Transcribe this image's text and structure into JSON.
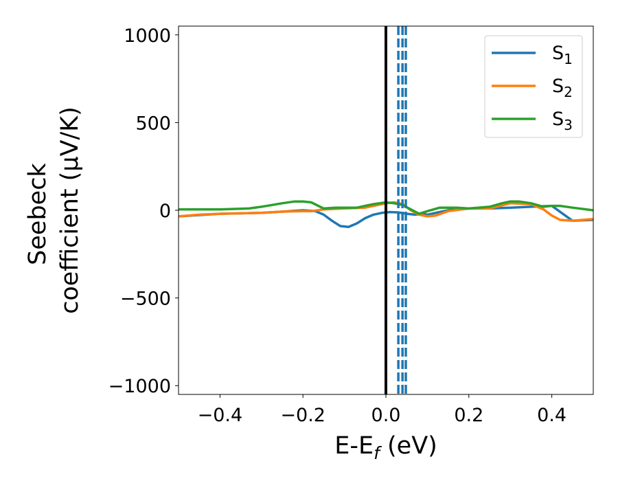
{
  "chart_data": {
    "type": "line",
    "xlabel_main": "E-E",
    "xlabel_sub": "f",
    "xlabel_unit": " (eV)",
    "ylabel_line1": "Seebeck",
    "ylabel_line2": "coefficient  (μV/K)",
    "xlim": [
      -0.5,
      0.5
    ],
    "ylim": [
      -1050,
      1050
    ],
    "x_ticks": [
      -0.4,
      -0.2,
      0.0,
      0.2,
      0.4
    ],
    "x_tick_labels": [
      "−0.4",
      "−0.2",
      "0.0",
      "0.2",
      "0.4"
    ],
    "y_ticks": [
      1000,
      500,
      0,
      -500,
      -1000
    ],
    "y_tick_labels": [
      "1000",
      "500",
      "0",
      "−500",
      "−1000"
    ],
    "legend_position": "top-right",
    "series": [
      {
        "name": "S",
        "sub": "1",
        "color": "#1f77b4",
        "x": [
          -0.5,
          -0.4,
          -0.3,
          -0.25,
          -0.2,
          -0.17,
          -0.15,
          -0.13,
          -0.11,
          -0.09,
          -0.07,
          -0.05,
          -0.03,
          -0.01,
          0.01,
          0.03,
          0.05,
          0.07,
          0.09,
          0.1,
          0.12,
          0.15,
          0.2,
          0.25,
          0.3,
          0.35,
          0.4,
          0.45,
          0.5
        ],
        "y": [
          -35,
          -20,
          -15,
          -8,
          0,
          -5,
          -25,
          -60,
          -90,
          -95,
          -75,
          -45,
          -25,
          -15,
          -10,
          -12,
          -20,
          -25,
          -20,
          -25,
          -15,
          0,
          10,
          10,
          15,
          20,
          25,
          -60,
          -55
        ]
      },
      {
        "name": "S",
        "sub": "2",
        "color": "#ff7f0e",
        "x": [
          -0.5,
          -0.45,
          -0.4,
          -0.3,
          -0.25,
          -0.2,
          -0.18,
          -0.15,
          -0.1,
          -0.05,
          0.0,
          0.02,
          0.04,
          0.06,
          0.08,
          0.1,
          0.12,
          0.15,
          0.2,
          0.25,
          0.3,
          0.35,
          0.38,
          0.4,
          0.42,
          0.45,
          0.5
        ],
        "y": [
          -35,
          -25,
          -20,
          -15,
          -8,
          -5,
          -5,
          5,
          10,
          15,
          40,
          45,
          35,
          0,
          -25,
          -35,
          -30,
          -5,
          10,
          10,
          40,
          35,
          5,
          -30,
          -55,
          -60,
          -50
        ]
      },
      {
        "name": "S",
        "sub": "3",
        "color": "#2ca02c",
        "x": [
          -0.5,
          -0.4,
          -0.33,
          -0.3,
          -0.25,
          -0.22,
          -0.2,
          -0.18,
          -0.15,
          -0.12,
          -0.1,
          -0.07,
          -0.05,
          -0.03,
          0.0,
          0.02,
          0.04,
          0.06,
          0.08,
          0.1,
          0.13,
          0.17,
          0.2,
          0.25,
          0.28,
          0.3,
          0.32,
          0.35,
          0.38,
          0.4,
          0.42,
          0.45,
          0.5
        ],
        "y": [
          5,
          5,
          10,
          20,
          40,
          50,
          50,
          45,
          10,
          15,
          15,
          15,
          25,
          35,
          45,
          40,
          30,
          5,
          -20,
          -5,
          15,
          15,
          10,
          20,
          40,
          50,
          50,
          40,
          20,
          25,
          25,
          15,
          0
        ]
      }
    ],
    "vlines": [
      {
        "x": 0.0,
        "color": "#000000",
        "style": "solid"
      },
      {
        "x": 0.03,
        "color": "#1f77b4",
        "style": "dashed"
      },
      {
        "x": 0.04,
        "color": "#1f77b4",
        "style": "dashed"
      },
      {
        "x": 0.048,
        "color": "#1f77b4",
        "style": "dashed"
      }
    ]
  }
}
